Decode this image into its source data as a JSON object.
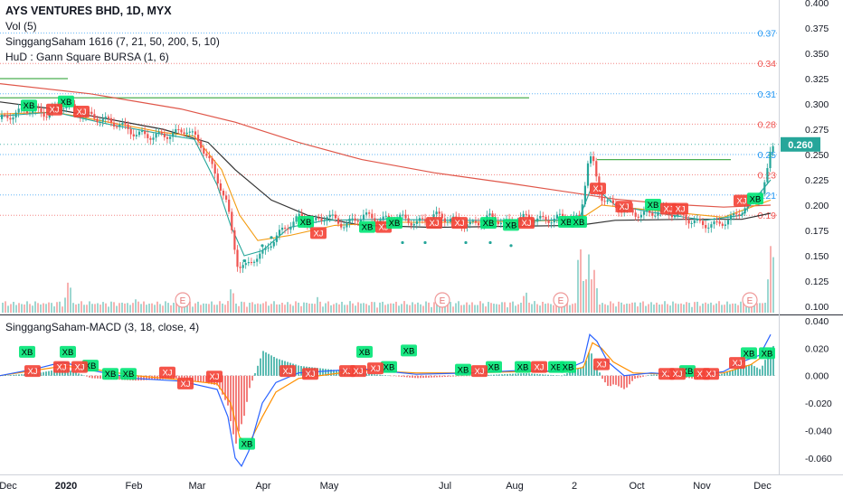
{
  "legend": {
    "title": "AYS VENTURES BHD, 1D, MYX",
    "vol": "Vol (5)",
    "ind1": "SinggangSaham 1616 (7, 21, 50, 200, 5, 10)",
    "ind2": "HuD : Gann Square BURSA (1, 6)",
    "macd": "SinggangSaham-MACD (3, 18, close, 4)"
  },
  "colors": {
    "up": "#26a69a",
    "down": "#ef5350",
    "ema_fast": "#26a69a",
    "ema_mid": "#f39c12",
    "ema_slow": "#333333",
    "ema_200": "#e0574a",
    "gann_blue": "#2196f3",
    "gann_red": "#ef5350",
    "gann_green": "#4caf50",
    "macd_line": "#2962ff",
    "signal_line": "#ff8f00",
    "price_tag": "#26a69a"
  },
  "chart_data": [
    {
      "type": "candlestick",
      "title": "AYS VENTURES BHD, 1D, MYX",
      "x_labels": [
        "Dec",
        "2020",
        "Feb",
        "Mar",
        "Apr",
        "May",
        "Jul",
        "Aug",
        "2",
        "Oct",
        "Nov",
        "Dec"
      ],
      "y_ticks": [
        "0.100",
        "0.125",
        "0.150",
        "0.175",
        "0.200",
        "0.225",
        "0.250",
        "0.275",
        "0.300",
        "0.325",
        "0.350",
        "0.375",
        "0.400"
      ],
      "ylim": [
        0.1,
        0.4
      ],
      "last_price": "0.260",
      "gann_levels": [
        {
          "value": 0.37,
          "label": "0.37",
          "color": "blue"
        },
        {
          "value": 0.34,
          "label": "0.34",
          "color": "red"
        },
        {
          "value": 0.31,
          "label": "0.31",
          "color": "blue"
        },
        {
          "value": 0.28,
          "label": "0.28",
          "color": "red"
        },
        {
          "value": 0.25,
          "label": "0.25",
          "color": "blue"
        },
        {
          "value": 0.23,
          "label": "0.23",
          "color": "red"
        },
        {
          "value": 0.21,
          "label": "0.21",
          "color": "blue"
        },
        {
          "value": 0.19,
          "label": "0.19",
          "color": "red"
        }
      ],
      "close_path": [
        [
          0,
          0.285
        ],
        [
          15,
          0.29
        ],
        [
          30,
          0.295
        ],
        [
          50,
          0.29
        ],
        [
          70,
          0.3
        ],
        [
          90,
          0.29
        ],
        [
          110,
          0.285
        ],
        [
          130,
          0.28
        ],
        [
          150,
          0.27
        ],
        [
          170,
          0.268
        ],
        [
          190,
          0.27
        ],
        [
          205,
          0.275
        ],
        [
          220,
          0.262
        ],
        [
          232,
          0.24
        ],
        [
          242,
          0.22
        ],
        [
          250,
          0.2
        ],
        [
          256,
          0.17
        ],
        [
          262,
          0.14
        ],
        [
          270,
          0.138
        ],
        [
          280,
          0.148
        ],
        [
          290,
          0.152
        ],
        [
          300,
          0.165
        ],
        [
          315,
          0.178
        ],
        [
          330,
          0.188
        ],
        [
          345,
          0.182
        ],
        [
          360,
          0.19
        ],
        [
          380,
          0.18
        ],
        [
          400,
          0.19
        ],
        [
          420,
          0.185
        ],
        [
          440,
          0.188
        ],
        [
          460,
          0.182
        ],
        [
          480,
          0.19
        ],
        [
          500,
          0.185
        ],
        [
          520,
          0.18
        ],
        [
          540,
          0.188
        ],
        [
          560,
          0.182
        ],
        [
          580,
          0.188
        ],
        [
          600,
          0.185
        ],
        [
          620,
          0.188
        ],
        [
          640,
          0.186
        ],
        [
          650,
          0.25
        ],
        [
          655,
          0.24
        ],
        [
          662,
          0.21
        ],
        [
          675,
          0.2
        ],
        [
          690,
          0.195
        ],
        [
          710,
          0.19
        ],
        [
          730,
          0.195
        ],
        [
          750,
          0.19
        ],
        [
          770,
          0.182
        ],
        [
          790,
          0.18
        ],
        [
          810,
          0.188
        ],
        [
          825,
          0.2
        ],
        [
          840,
          0.21
        ],
        [
          846,
          0.225
        ],
        [
          852,
          0.26
        ]
      ],
      "ema_fast_path": [
        [
          0,
          0.288
        ],
        [
          60,
          0.292
        ],
        [
          120,
          0.28
        ],
        [
          180,
          0.27
        ],
        [
          215,
          0.265
        ],
        [
          240,
          0.22
        ],
        [
          255,
          0.18
        ],
        [
          270,
          0.15
        ],
        [
          290,
          0.155
        ],
        [
          320,
          0.178
        ],
        [
          360,
          0.185
        ],
        [
          420,
          0.186
        ],
        [
          500,
          0.185
        ],
        [
          600,
          0.185
        ],
        [
          640,
          0.186
        ],
        [
          655,
          0.22
        ],
        [
          680,
          0.2
        ],
        [
          720,
          0.193
        ],
        [
          780,
          0.185
        ],
        [
          820,
          0.19
        ],
        [
          852,
          0.225
        ]
      ],
      "ema_mid_path": [
        [
          0,
          0.29
        ],
        [
          60,
          0.292
        ],
        [
          120,
          0.282
        ],
        [
          180,
          0.272
        ],
        [
          215,
          0.268
        ],
        [
          245,
          0.235
        ],
        [
          265,
          0.19
        ],
        [
          285,
          0.165
        ],
        [
          320,
          0.17
        ],
        [
          370,
          0.18
        ],
        [
          440,
          0.183
        ],
        [
          520,
          0.183
        ],
        [
          620,
          0.185
        ],
        [
          648,
          0.19
        ],
        [
          665,
          0.2
        ],
        [
          720,
          0.195
        ],
        [
          800,
          0.188
        ],
        [
          852,
          0.205
        ]
      ],
      "ema_slow_path": [
        [
          0,
          0.302
        ],
        [
          60,
          0.295
        ],
        [
          120,
          0.285
        ],
        [
          180,
          0.275
        ],
        [
          230,
          0.262
        ],
        [
          260,
          0.235
        ],
        [
          300,
          0.205
        ],
        [
          340,
          0.19
        ],
        [
          400,
          0.18
        ],
        [
          480,
          0.178
        ],
        [
          560,
          0.179
        ],
        [
          640,
          0.18
        ],
        [
          680,
          0.185
        ],
        [
          760,
          0.186
        ],
        [
          820,
          0.186
        ],
        [
          852,
          0.192
        ]
      ],
      "ema200_path": [
        [
          0,
          0.32
        ],
        [
          100,
          0.31
        ],
        [
          200,
          0.295
        ],
        [
          260,
          0.282
        ],
        [
          330,
          0.262
        ],
        [
          400,
          0.245
        ],
        [
          480,
          0.232
        ],
        [
          560,
          0.222
        ],
        [
          620,
          0.214
        ],
        [
          680,
          0.206
        ],
        [
          740,
          0.201
        ],
        [
          800,
          0.198
        ],
        [
          852,
          0.2
        ]
      ],
      "gann_green_segments": [
        {
          "x": [
            0,
            75
          ],
          "value": 0.325
        },
        {
          "x": [
            0,
            585
          ],
          "value": 0.306
        },
        {
          "x": [
            660,
            808
          ],
          "value": 0.245
        }
      ]
    },
    {
      "type": "bar",
      "title": "Vol (5)",
      "note": "volume histogram inside price pane",
      "peaks": [
        {
          "x": 75,
          "h": 0.45
        },
        {
          "x": 150,
          "h": 0.2
        },
        {
          "x": 255,
          "h": 0.35
        },
        {
          "x": 350,
          "h": 0.2
        },
        {
          "x": 580,
          "h": 0.3
        },
        {
          "x": 640,
          "h": 0.95
        },
        {
          "x": 650,
          "h": 0.75
        },
        {
          "x": 656,
          "h": 0.55
        },
        {
          "x": 852,
          "h": 1.0
        }
      ],
      "earnings_markers": [
        "E",
        "E",
        "E",
        "E"
      ]
    },
    {
      "type": "line",
      "title": "SinggangSaham-MACD (3, 18, close, 4)",
      "y_ticks": [
        "0.040",
        "0.020",
        "0.000",
        "-0.020",
        "-0.040",
        "-0.060"
      ],
      "ylim": [
        -0.07,
        0.04
      ],
      "macd_path": [
        [
          0,
          0.0
        ],
        [
          40,
          0.005
        ],
        [
          70,
          0.01
        ],
        [
          100,
          0.004
        ],
        [
          150,
          -0.002
        ],
        [
          200,
          -0.004
        ],
        [
          240,
          -0.01
        ],
        [
          252,
          -0.03
        ],
        [
          260,
          -0.06
        ],
        [
          267,
          -0.066
        ],
        [
          275,
          -0.055
        ],
        [
          290,
          -0.02
        ],
        [
          305,
          -0.005
        ],
        [
          330,
          0.002
        ],
        [
          400,
          0.005
        ],
        [
          460,
          0.001
        ],
        [
          520,
          0.002
        ],
        [
          580,
          0.004
        ],
        [
          620,
          0.003
        ],
        [
          645,
          0.01
        ],
        [
          652,
          0.03
        ],
        [
          660,
          0.025
        ],
        [
          672,
          0.01
        ],
        [
          690,
          0.0
        ],
        [
          720,
          0.002
        ],
        [
          770,
          0.0
        ],
        [
          800,
          0.003
        ],
        [
          820,
          0.01
        ],
        [
          840,
          0.015
        ],
        [
          852,
          0.03
        ]
      ],
      "signal_path": [
        [
          0,
          0.0
        ],
        [
          40,
          0.004
        ],
        [
          70,
          0.007
        ],
        [
          100,
          0.005
        ],
        [
          150,
          0.0
        ],
        [
          200,
          -0.003
        ],
        [
          240,
          -0.006
        ],
        [
          255,
          -0.02
        ],
        [
          265,
          -0.045
        ],
        [
          275,
          -0.05
        ],
        [
          290,
          -0.03
        ],
        [
          305,
          -0.012
        ],
        [
          330,
          -0.002
        ],
        [
          400,
          0.004
        ],
        [
          460,
          0.002
        ],
        [
          520,
          0.002
        ],
        [
          580,
          0.003
        ],
        [
          620,
          0.003
        ],
        [
          645,
          0.006
        ],
        [
          655,
          0.024
        ],
        [
          665,
          0.02
        ],
        [
          678,
          0.01
        ],
        [
          700,
          0.002
        ],
        [
          740,
          0.001
        ],
        [
          800,
          0.002
        ],
        [
          830,
          0.008
        ],
        [
          852,
          0.018
        ]
      ],
      "labels": [
        {
          "text": "XB",
          "type": "buy",
          "x": 30,
          "y": 0.017
        },
        {
          "text": "XB",
          "type": "buy",
          "x": 75,
          "y": 0.017
        },
        {
          "text": "XB",
          "type": "buy",
          "x": 100,
          "y": 0.007
        },
        {
          "text": "XB",
          "type": "buy",
          "x": 122,
          "y": 0.001
        },
        {
          "text": "XB",
          "type": "buy",
          "x": 142,
          "y": 0.001
        },
        {
          "text": "XB",
          "type": "buy",
          "x": 273,
          "y": -0.05
        },
        {
          "text": "XB",
          "type": "buy",
          "x": 403,
          "y": 0.017
        },
        {
          "text": "XB",
          "type": "buy",
          "x": 430,
          "y": 0.006
        },
        {
          "text": "XB",
          "type": "buy",
          "x": 452,
          "y": 0.018
        },
        {
          "text": "XB",
          "type": "buy",
          "x": 512,
          "y": 0.004
        },
        {
          "text": "XB",
          "type": "buy",
          "x": 546,
          "y": 0.006
        },
        {
          "text": "XB",
          "type": "buy",
          "x": 578,
          "y": 0.006
        },
        {
          "text": "XB",
          "type": "buy",
          "x": 615,
          "y": 0.006
        },
        {
          "text": "XB",
          "type": "buy",
          "x": 628,
          "y": 0.006
        },
        {
          "text": "XB",
          "type": "buy",
          "x": 760,
          "y": 0.003
        },
        {
          "text": "XB",
          "type": "buy",
          "x": 828,
          "y": 0.016
        },
        {
          "text": "XB",
          "type": "buy",
          "x": 848,
          "y": 0.016
        },
        {
          "text": "XJ",
          "type": "sell",
          "x": 36,
          "y": 0.003
        },
        {
          "text": "XJ",
          "type": "sell",
          "x": 68,
          "y": 0.006
        },
        {
          "text": "XJ",
          "type": "sell",
          "x": 88,
          "y": 0.006
        },
        {
          "text": "XJ",
          "type": "sell",
          "x": 185,
          "y": 0.002
        },
        {
          "text": "XJ",
          "type": "sell",
          "x": 205,
          "y": -0.006
        },
        {
          "text": "XJ",
          "type": "sell",
          "x": 237,
          "y": -0.001
        },
        {
          "text": "XJ",
          "type": "sell",
          "x": 318,
          "y": 0.003
        },
        {
          "text": "XJ",
          "type": "sell",
          "x": 343,
          "y": 0.001
        },
        {
          "text": "XJ",
          "type": "sell",
          "x": 384,
          "y": 0.003
        },
        {
          "text": "XJ",
          "type": "sell",
          "x": 396,
          "y": 0.003
        },
        {
          "text": "XJ",
          "type": "sell",
          "x": 415,
          "y": 0.005
        },
        {
          "text": "XJ",
          "type": "sell",
          "x": 530,
          "y": 0.003
        },
        {
          "text": "XJ",
          "type": "sell",
          "x": 596,
          "y": 0.006
        },
        {
          "text": "XJ",
          "type": "sell",
          "x": 665,
          "y": 0.008
        },
        {
          "text": "XJ",
          "type": "sell",
          "x": 737,
          "y": 0.001
        },
        {
          "text": "XJ",
          "type": "sell",
          "x": 749,
          "y": 0.001
        },
        {
          "text": "XJ",
          "type": "sell",
          "x": 776,
          "y": 0.001
        },
        {
          "text": "XJ",
          "type": "sell",
          "x": 786,
          "y": 0.001
        },
        {
          "text": "XJ",
          "type": "sell",
          "x": 815,
          "y": 0.009
        }
      ]
    }
  ],
  "price_labels": [
    {
      "text": "XB",
      "type": "buy",
      "x": 32,
      "v": 0.298
    },
    {
      "text": "XB",
      "type": "buy",
      "x": 73,
      "v": 0.302
    },
    {
      "text": "XJ",
      "type": "sell",
      "x": 60,
      "v": 0.294
    },
    {
      "text": "XJ",
      "type": "sell",
      "x": 90,
      "v": 0.292
    },
    {
      "text": "XB",
      "type": "buy",
      "x": 338,
      "v": 0.183
    },
    {
      "text": "XJ",
      "type": "sell",
      "x": 352,
      "v": 0.172
    },
    {
      "text": "XB",
      "type": "buy",
      "x": 406,
      "v": 0.178
    },
    {
      "text": "XJ",
      "type": "sell",
      "x": 424,
      "v": 0.178
    },
    {
      "text": "XB",
      "type": "buy",
      "x": 436,
      "v": 0.182
    },
    {
      "text": "XJ",
      "type": "sell",
      "x": 480,
      "v": 0.182
    },
    {
      "text": "XJ",
      "type": "sell",
      "x": 508,
      "v": 0.182
    },
    {
      "text": "XB",
      "type": "buy",
      "x": 540,
      "v": 0.182
    },
    {
      "text": "XB",
      "type": "buy",
      "x": 565,
      "v": 0.18
    },
    {
      "text": "XJ",
      "type": "sell",
      "x": 582,
      "v": 0.182
    },
    {
      "text": "XB",
      "type": "buy",
      "x": 626,
      "v": 0.183
    },
    {
      "text": "XB",
      "type": "buy",
      "x": 640,
      "v": 0.183
    },
    {
      "text": "XJ",
      "type": "sell",
      "x": 661,
      "v": 0.216
    },
    {
      "text": "XJ",
      "type": "sell",
      "x": 690,
      "v": 0.198
    },
    {
      "text": "XB",
      "type": "buy",
      "x": 722,
      "v": 0.2
    },
    {
      "text": "XJ",
      "type": "sell",
      "x": 739,
      "v": 0.196
    },
    {
      "text": "XJ",
      "type": "sell",
      "x": 752,
      "v": 0.196
    },
    {
      "text": "XJ",
      "type": "sell",
      "x": 820,
      "v": 0.204
    },
    {
      "text": "XB",
      "type": "buy",
      "x": 835,
      "v": 0.206
    }
  ]
}
